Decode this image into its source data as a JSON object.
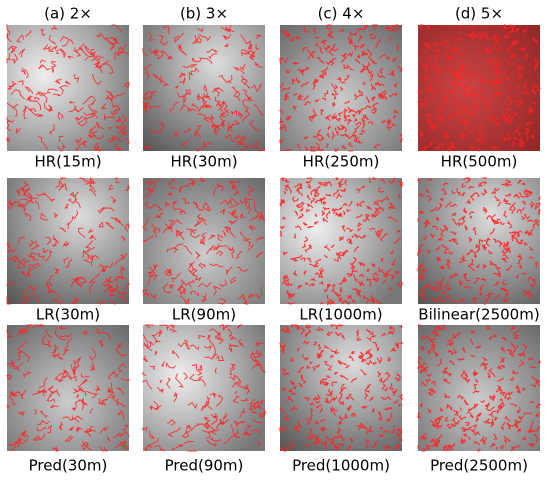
{
  "columns": [
    "(a) 2×",
    "(b) 3×",
    "(c) 4×",
    "(d) 5×"
  ],
  "rows": [
    [
      "HR(15m)",
      "HR(30m)",
      "HR(250m)",
      "HR(500m)"
    ],
    [
      "LR(30m)",
      "LR(90m)",
      "LR(1000m)",
      "Bilinear(2500m)"
    ],
    [
      "Pred(30m)",
      "Pred(90m)",
      "Pred(1000m)",
      "Pred(2500m)"
    ]
  ]
}
